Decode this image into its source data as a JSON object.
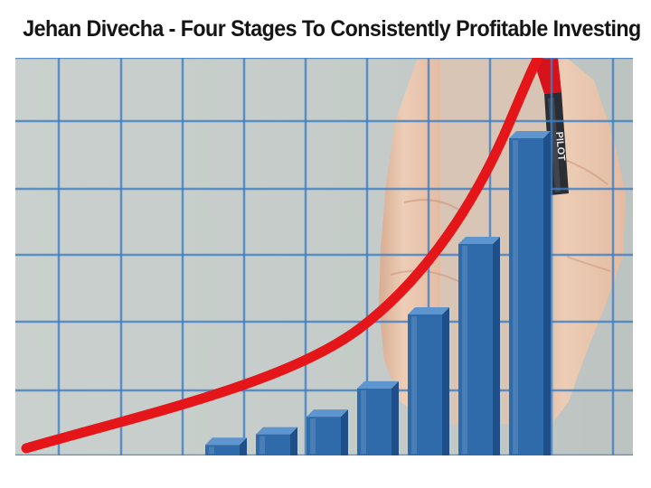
{
  "headline": "Jehan Divecha - Four Stages To Consistently Profitable Investing",
  "photo": {
    "description_icon": "rising-bar-chart-photo",
    "marker_label": "PILOT",
    "colors": {
      "background": "#c8cfcc",
      "grid": "#3f7fc4",
      "bar_front": "#2f6bab",
      "bar_side": "#1f4f86",
      "bar_top": "#5f95cf",
      "curve": "#e5161a",
      "skin": "#e9c3aa"
    },
    "bar_levels": [
      0.03,
      0.06,
      0.11,
      0.19,
      0.4,
      0.6,
      0.9
    ]
  }
}
